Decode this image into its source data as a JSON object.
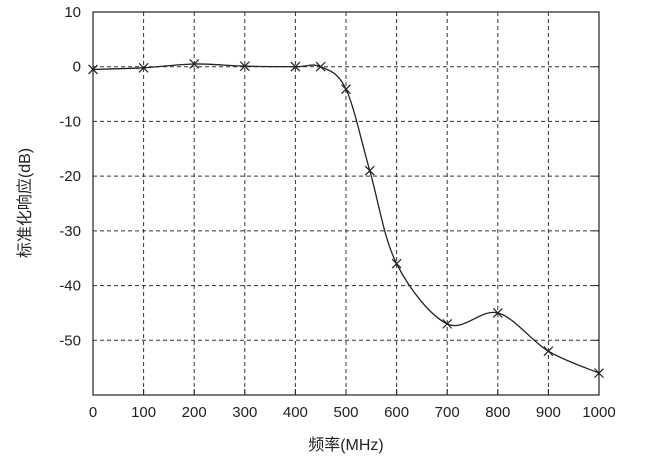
{
  "chart_data": {
    "type": "line",
    "title": "",
    "xlabel": "频率(MHz)",
    "ylabel": "标准化响应(dB)",
    "xlim": [
      0,
      1000
    ],
    "ylim": [
      -60,
      10
    ],
    "xticks": [
      0,
      100,
      200,
      300,
      400,
      500,
      600,
      700,
      800,
      900,
      1000
    ],
    "yticks": [
      10,
      0,
      -10,
      -20,
      -30,
      -40,
      -50
    ],
    "grid": true,
    "series": [
      {
        "name": "response",
        "marker": "x",
        "x": [
          0,
          100,
          200,
          300,
          400,
          450,
          500,
          547,
          600,
          700,
          800,
          900,
          1000
        ],
        "y": [
          -0.5,
          -0.2,
          0.5,
          0.1,
          0,
          0,
          -4.1,
          -19,
          -36,
          -47,
          -45,
          -52,
          -56
        ]
      }
    ]
  }
}
